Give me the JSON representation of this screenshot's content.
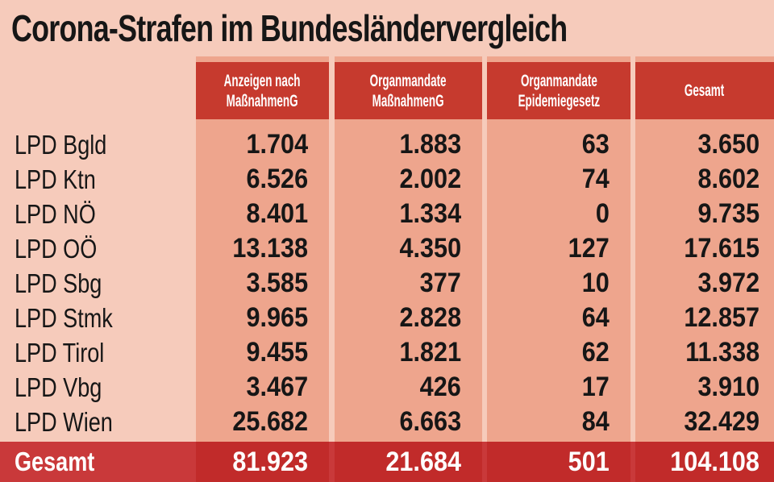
{
  "title": "Corona-Strafen im Bundesländervergleich",
  "colors": {
    "background": "#f6cbbb",
    "cell": "#eea58d",
    "header": "#c63a2e",
    "total_row": "#c9393a"
  },
  "chart_data": {
    "type": "table",
    "title": "Corona-Strafen im Bundesländervergleich",
    "columns": [
      {
        "line1": "Anzeigen nach",
        "line2": "MaßnahmenG"
      },
      {
        "line1": "Organmandate",
        "line2": "MaßnahmenG"
      },
      {
        "line1": "Organmandate",
        "line2": "Epidemiegesetz"
      },
      {
        "line1": "Gesamt",
        "line2": ""
      }
    ],
    "rows": [
      {
        "label": "LPD Bgld",
        "values": [
          "1.704",
          "1.883",
          "63",
          "3.650"
        ]
      },
      {
        "label": "LPD Ktn",
        "values": [
          "6.526",
          "2.002",
          "74",
          "8.602"
        ]
      },
      {
        "label": "LPD NÖ",
        "values": [
          "8.401",
          "1.334",
          "0",
          "9.735"
        ]
      },
      {
        "label": "LPD OÖ",
        "values": [
          "13.138",
          "4.350",
          "127",
          "17.615"
        ]
      },
      {
        "label": "LPD Sbg",
        "values": [
          "3.585",
          "377",
          "10",
          "3.972"
        ]
      },
      {
        "label": "LPD Stmk",
        "values": [
          "9.965",
          "2.828",
          "64",
          "12.857"
        ]
      },
      {
        "label": "LPD Tirol",
        "values": [
          "9.455",
          "1.821",
          "62",
          "11.338"
        ]
      },
      {
        "label": "LPD Vbg",
        "values": [
          "3.467",
          "426",
          "17",
          "3.910"
        ]
      },
      {
        "label": "LPD Wien",
        "values": [
          "25.682",
          "6.663",
          "84",
          "32.429"
        ]
      }
    ],
    "total": {
      "label": "Gesamt",
      "values": [
        "81.923",
        "21.684",
        "501",
        "104.108"
      ]
    }
  }
}
